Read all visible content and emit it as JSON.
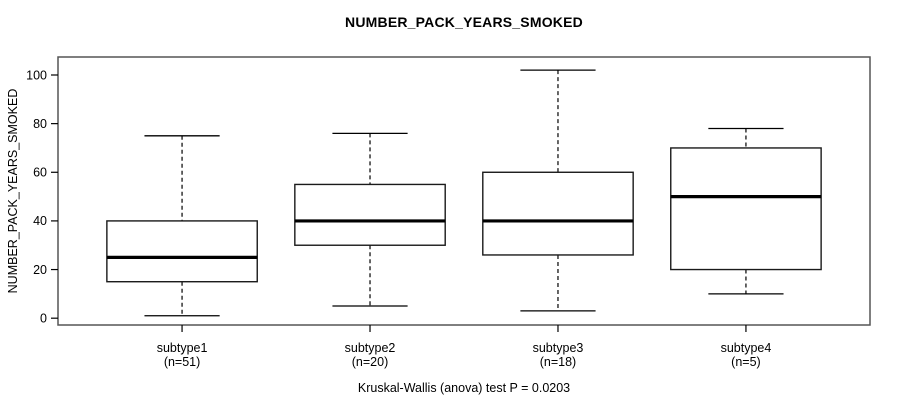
{
  "chart_data": {
    "type": "boxplot",
    "title": "NUMBER_PACK_YEARS_SMOKED",
    "ylabel": "NUMBER_PACK_YEARS_SMOKED",
    "xlabel": "",
    "caption": "Kruskal-Wallis (anova) test P = 0.0203",
    "ylim": [
      0,
      100
    ],
    "yticks": [
      0,
      20,
      40,
      60,
      80,
      100
    ],
    "grid": false,
    "categories": [
      "subtype1",
      "subtype2",
      "subtype3",
      "subtype4"
    ],
    "category_sublabels": [
      "(n=51)",
      "(n=20)",
      "(n=18)",
      "(n=5)"
    ],
    "series": [
      {
        "name": "subtype1",
        "n": 51,
        "whisker_low": 1,
        "q1": 15,
        "median": 25,
        "q3": 40,
        "whisker_high": 75,
        "outliers": []
      },
      {
        "name": "subtype2",
        "n": 20,
        "whisker_low": 5,
        "q1": 30,
        "median": 40,
        "q3": 55,
        "whisker_high": 76,
        "outliers": []
      },
      {
        "name": "subtype3",
        "n": 18,
        "whisker_low": 3,
        "q1": 26,
        "median": 40,
        "q3": 60,
        "whisker_high": 102,
        "outliers": []
      },
      {
        "name": "subtype4",
        "n": 5,
        "whisker_low": 10,
        "q1": 20,
        "median": 50,
        "q3": 70,
        "whisker_high": 78,
        "outliers": []
      }
    ],
    "colors": {
      "box_fill": "#ffffff",
      "line": "#000000",
      "frame": "#555555",
      "text": "#000000"
    }
  }
}
